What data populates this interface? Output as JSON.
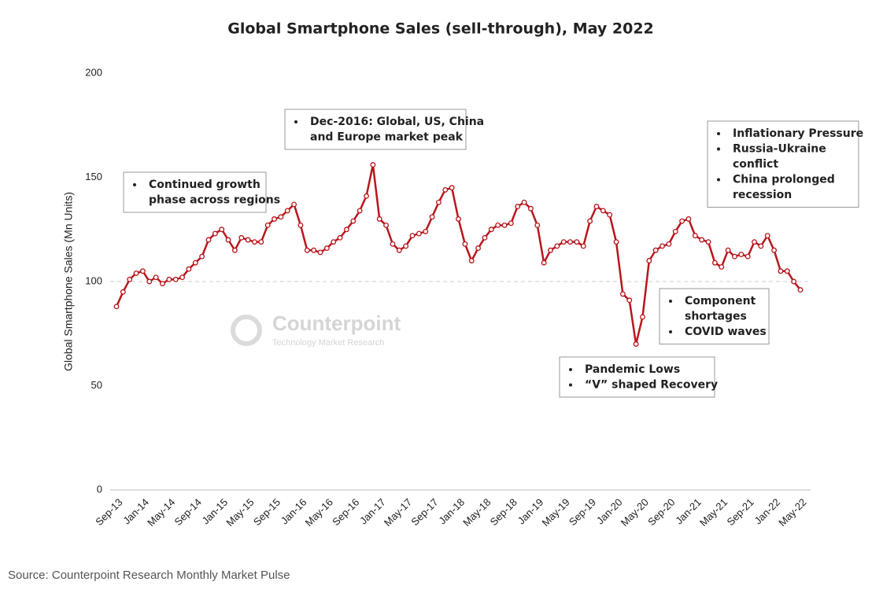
{
  "chart_data": {
    "type": "line",
    "title": "Global Smartphone Sales (sell-through), May 2022",
    "y_label": "Global Smartphone Sales (Mn Units)",
    "source": "Source: Counterpoint Research Monthly Market Pulse",
    "watermark": [
      "Counterpoint",
      "Technology Market Research"
    ],
    "categories": [
      "Sep-13",
      null,
      null,
      null,
      "Jan-14",
      null,
      null,
      null,
      "May-14",
      null,
      null,
      null,
      "Sep-14",
      null,
      null,
      null,
      "Jan-15",
      null,
      null,
      null,
      "May-15",
      null,
      null,
      null,
      "Sep-15",
      null,
      null,
      null,
      "Jan-16",
      null,
      null,
      null,
      "May-16",
      null,
      null,
      null,
      "Sep-16",
      null,
      null,
      null,
      "Jan-17",
      null,
      null,
      null,
      "May-17",
      null,
      null,
      null,
      "Sep-17",
      null,
      null,
      null,
      "Jan-18",
      null,
      null,
      null,
      "May-18",
      null,
      null,
      null,
      "Sep-18",
      null,
      null,
      null,
      "Jan-19",
      null,
      null,
      null,
      "May-19",
      null,
      null,
      null,
      "Sep-19",
      null,
      null,
      null,
      "Jan-20",
      null,
      null,
      null,
      "May-20",
      null,
      null,
      null,
      "Sep-20",
      null,
      null,
      null,
      "Jan-21",
      null,
      null,
      null,
      "May-21",
      null,
      null,
      null,
      "Sep-21",
      null,
      null,
      null,
      "Jan-22",
      null,
      null,
      null,
      "May-22"
    ],
    "series": [
      {
        "name": "Global Smartphone Sales",
        "color": "#b8161c",
        "values": [
          88,
          95,
          101,
          104,
          105,
          100,
          102,
          99,
          101,
          101,
          102,
          106,
          109,
          112,
          120,
          123,
          125,
          120,
          115,
          121,
          120,
          119,
          119,
          127,
          130,
          131,
          134,
          137,
          127,
          115,
          115,
          114,
          116,
          119,
          121,
          125,
          129,
          134,
          141,
          156,
          130,
          127,
          118,
          115,
          117,
          122,
          123,
          124,
          131,
          138,
          144,
          145,
          130,
          118,
          110,
          116,
          121,
          125,
          127,
          127,
          128,
          136,
          138,
          135,
          127,
          109,
          115,
          117,
          119,
          119,
          119,
          117,
          129,
          136,
          134,
          132,
          119,
          94,
          91,
          70,
          83,
          110,
          115,
          117,
          118,
          124,
          129,
          130,
          122,
          120,
          119,
          109,
          107,
          115,
          112,
          113,
          112,
          119,
          117,
          122,
          115,
          105,
          105,
          100,
          96
        ]
      }
    ],
    "ylim": [
      0,
      200
    ],
    "yticks": [
      0,
      50,
      100,
      150,
      200
    ],
    "reference_line": 100,
    "annotations": [
      {
        "items": [
          [
            "Continued growth",
            "phase across regions"
          ]
        ]
      },
      {
        "items": [
          [
            "Dec-2016: Global, US, China",
            "and Europe market peak"
          ]
        ]
      },
      {
        "items": [
          [
            "Inflationary Pressure"
          ],
          [
            "Russia-Ukraine",
            "conflict"
          ],
          [
            "China prolonged",
            "recession"
          ]
        ]
      },
      {
        "items": [
          [
            "Component",
            "shortages"
          ],
          [
            "COVID waves"
          ]
        ]
      },
      {
        "items": [
          [
            "Pandemic Lows"
          ],
          [
            "“V” shaped Recovery"
          ]
        ]
      }
    ]
  }
}
